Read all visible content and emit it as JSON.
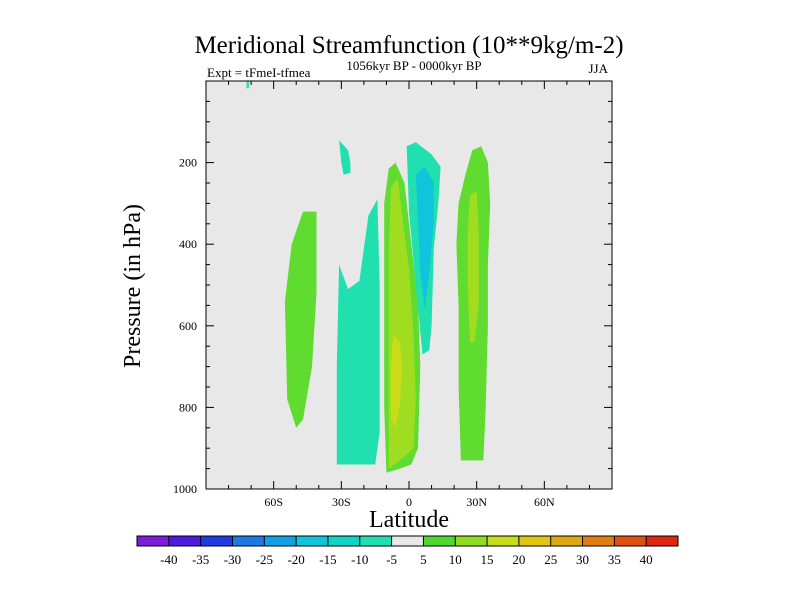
{
  "chart_data": {
    "type": "contour",
    "title": "Meridional Streamfunction (10**9kg/m-2)",
    "experiment": "Expt = tFmeI-tfmea",
    "period": "1056kyr BP - 0000kyr BP",
    "season": "JJA",
    "xlabel": "Latitude",
    "ylabel": "Pressure (in hPa)",
    "xlim": [
      -90,
      90
    ],
    "ylim": [
      1000,
      0
    ],
    "x_ticks": [
      -60,
      -30,
      0,
      30,
      60
    ],
    "x_tick_labels": [
      "60S",
      "30S",
      "0",
      "30N",
      "60N"
    ],
    "y_ticks": [
      200,
      400,
      600,
      800,
      1000
    ],
    "y_tick_labels": [
      "200",
      "400",
      "600",
      "800",
      "1000"
    ],
    "background_color": "#e8e8e8",
    "colorbar": {
      "labels": [
        "-40",
        "-35",
        "-30",
        "-25",
        "-20",
        "-15",
        "-10",
        "-5",
        "5",
        "10",
        "15",
        "20",
        "25",
        "30",
        "35",
        "40"
      ],
      "colors": [
        "#7f1cdc",
        "#4b1ce0",
        "#1e3ce4",
        "#1e78e4",
        "#10a0e4",
        "#10c4dc",
        "#10d4c4",
        "#20e0b0",
        "#e8e8e8",
        "#50d830",
        "#90dc20",
        "#c8dc18",
        "#e0c810",
        "#e0a810",
        "#e07c10",
        "#e05010",
        "#e02810"
      ]
    },
    "regions": [
      {
        "name": "sh-mid-positive",
        "level": "5 to 10",
        "color": "#60dc30",
        "points": [
          [
            -54,
            780
          ],
          [
            -55,
            540
          ],
          [
            -52,
            400
          ],
          [
            -47,
            320
          ],
          [
            -41,
            320
          ],
          [
            -41,
            520
          ],
          [
            -43,
            700
          ],
          [
            -47,
            830
          ],
          [
            -50,
            850
          ]
        ]
      },
      {
        "name": "sh-subtropic-negative",
        "level": "-5 to -10",
        "color": "#20e0b0",
        "points": [
          [
            -32,
            940
          ],
          [
            -32,
            700
          ],
          [
            -31,
            450
          ],
          [
            -27,
            510
          ],
          [
            -22,
            490
          ],
          [
            -18,
            330
          ],
          [
            -14,
            290
          ],
          [
            -13,
            500
          ],
          [
            -13,
            860
          ],
          [
            -15,
            940
          ]
        ]
      },
      {
        "name": "sh-upper-negative-patch",
        "level": "-5 to -10",
        "color": "#20e0b0",
        "points": [
          [
            -31,
            145
          ],
          [
            -27,
            170
          ],
          [
            -26,
            200
          ],
          [
            -26,
            225
          ],
          [
            -29,
            230
          ],
          [
            -30,
            200
          ]
        ]
      },
      {
        "name": "equatorial-positive-outer",
        "level": "5 to 10",
        "color": "#60dc30",
        "points": [
          [
            -10,
            960
          ],
          [
            -11,
            800
          ],
          [
            -11,
            500
          ],
          [
            -11,
            300
          ],
          [
            -9,
            215
          ],
          [
            -6,
            200
          ],
          [
            -2,
            250
          ],
          [
            1,
            400
          ],
          [
            4,
            540
          ],
          [
            5,
            700
          ],
          [
            4,
            900
          ],
          [
            1,
            940
          ],
          [
            -4,
            950
          ]
        ]
      },
      {
        "name": "equatorial-positive-inner",
        "level": "10 to 15",
        "color": "#a0dc20",
        "points": [
          [
            -9,
            950
          ],
          [
            -9,
            700
          ],
          [
            -9,
            420
          ],
          [
            -8,
            260
          ],
          [
            -5,
            240
          ],
          [
            -3,
            330
          ],
          [
            0,
            460
          ],
          [
            2,
            620
          ],
          [
            3,
            780
          ],
          [
            2,
            900
          ],
          [
            -4,
            930
          ]
        ]
      },
      {
        "name": "equatorial-positive-core",
        "level": "15 to 20",
        "color": "#c8dc18",
        "points": [
          [
            -8,
            830
          ],
          [
            -8,
            700
          ],
          [
            -7,
            620
          ],
          [
            -4,
            640
          ],
          [
            -3,
            700
          ],
          [
            -4,
            790
          ],
          [
            -6,
            850
          ]
        ]
      },
      {
        "name": "equatorial-upper-core",
        "level": "10 to 15",
        "color": "#a0dc20",
        "points": [
          [
            -8,
            380
          ],
          [
            -8,
            290
          ],
          [
            -6,
            265
          ],
          [
            -5,
            330
          ],
          [
            -6,
            390
          ]
        ]
      },
      {
        "name": "nh-tropic-negative-outer",
        "level": "-5 to -10",
        "color": "#20e0b0",
        "points": [
          [
            -1,
            160
          ],
          [
            3,
            150
          ],
          [
            10,
            180
          ],
          [
            14,
            210
          ],
          [
            13,
            300
          ],
          [
            11,
            410
          ],
          [
            10,
            600
          ],
          [
            9,
            660
          ],
          [
            6,
            670
          ],
          [
            3,
            500
          ],
          [
            0,
            320
          ]
        ]
      },
      {
        "name": "nh-tropic-negative-inner",
        "level": "-10 to -15",
        "color": "#10c4dc",
        "points": [
          [
            3,
            230
          ],
          [
            7,
            210
          ],
          [
            11,
            250
          ],
          [
            11,
            340
          ],
          [
            9,
            470
          ],
          [
            7,
            560
          ],
          [
            5,
            470
          ],
          [
            4,
            340
          ]
        ]
      },
      {
        "name": "nh-subtropic-positive-outer",
        "level": "5 to 10",
        "color": "#60dc30",
        "points": [
          [
            23,
            930
          ],
          [
            22,
            750
          ],
          [
            22,
            550
          ],
          [
            21,
            400
          ],
          [
            22,
            300
          ],
          [
            25,
            230
          ],
          [
            28,
            170
          ],
          [
            32,
            160
          ],
          [
            35,
            200
          ],
          [
            36,
            300
          ],
          [
            35,
            450
          ],
          [
            35,
            600
          ],
          [
            34,
            800
          ],
          [
            33,
            930
          ]
        ]
      },
      {
        "name": "nh-subtropic-positive-inner",
        "level": "10 to 15",
        "color": "#a0dc20",
        "points": [
          [
            27,
            640
          ],
          [
            26,
            500
          ],
          [
            26,
            380
          ],
          [
            27,
            280
          ],
          [
            30,
            270
          ],
          [
            31,
            380
          ],
          [
            31,
            550
          ],
          [
            29,
            640
          ]
        ]
      },
      {
        "name": "polar-tiny-negative",
        "level": "-5 to -10",
        "color": "#20e0b0",
        "points": [
          [
            -72,
            0
          ],
          [
            -71,
            0
          ],
          [
            -71,
            18
          ],
          [
            -72,
            18
          ]
        ]
      }
    ]
  }
}
